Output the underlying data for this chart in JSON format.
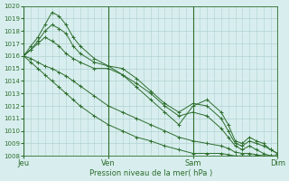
{
  "xlabel": "Pression niveau de la mer( hPa )",
  "background_color": "#d8eeee",
  "grid_color": "#b0d0d0",
  "line_color": "#2d6e2d",
  "ylim": [
    1008,
    1020
  ],
  "day_labels": [
    "Jeu",
    "Ven",
    "Sam",
    "Dim"
  ],
  "day_positions": [
    0,
    72,
    144,
    216
  ],
  "total_hours": 216,
  "series": [
    {
      "x": [
        0,
        6,
        12,
        18,
        24,
        30,
        36,
        42,
        48,
        60,
        72,
        84,
        96,
        108,
        120,
        132,
        144,
        156,
        168,
        174,
        180,
        186,
        192,
        198,
        204,
        210,
        216
      ],
      "y": [
        1016,
        1016.8,
        1017.5,
        1018.5,
        1019.5,
        1019.2,
        1018.5,
        1017.5,
        1016.8,
        1015.8,
        1015.2,
        1014.5,
        1013.5,
        1012.5,
        1011.5,
        1010.5,
        1012.0,
        1012.5,
        1011.5,
        1010.5,
        1009.2,
        1009.0,
        1009.5,
        1009.2,
        1009.0,
        1008.5,
        1008.2
      ]
    },
    {
      "x": [
        0,
        6,
        12,
        18,
        24,
        30,
        36,
        42,
        48,
        60,
        72,
        84,
        96,
        108,
        120,
        132,
        144,
        156,
        168,
        174,
        180,
        186,
        192,
        198,
        204,
        210,
        216
      ],
      "y": [
        1016.1,
        1016.5,
        1017.2,
        1018.0,
        1018.5,
        1018.2,
        1017.8,
        1016.8,
        1016.2,
        1015.5,
        1015.2,
        1015.0,
        1014.2,
        1013.2,
        1012.2,
        1011.5,
        1012.2,
        1012.0,
        1011.0,
        1010.0,
        1009.0,
        1008.8,
        1009.2,
        1009.0,
        1008.8,
        1008.5,
        1008.2
      ]
    },
    {
      "x": [
        0,
        6,
        12,
        18,
        24,
        30,
        36,
        42,
        48,
        60,
        72,
        84,
        96,
        108,
        120,
        132,
        144,
        156,
        168,
        174,
        180,
        186,
        192,
        198,
        204,
        210,
        216
      ],
      "y": [
        1016.0,
        1016.5,
        1017.0,
        1017.5,
        1017.2,
        1016.8,
        1016.2,
        1015.8,
        1015.5,
        1015.0,
        1015.0,
        1014.5,
        1013.8,
        1013.0,
        1012.0,
        1011.2,
        1011.5,
        1011.2,
        1010.2,
        1009.5,
        1008.8,
        1008.5,
        1008.8,
        1008.5,
        1008.2,
        1008.0,
        1008.0
      ]
    },
    {
      "x": [
        0,
        6,
        12,
        18,
        24,
        30,
        36,
        42,
        48,
        60,
        72,
        84,
        96,
        108,
        120,
        132,
        144,
        156,
        168,
        174,
        180,
        186,
        192,
        198,
        204,
        210,
        216
      ],
      "y": [
        1016.0,
        1015.8,
        1015.5,
        1015.2,
        1015.0,
        1014.7,
        1014.4,
        1014.0,
        1013.6,
        1012.8,
        1012.0,
        1011.5,
        1011.0,
        1010.5,
        1010.0,
        1009.5,
        1009.2,
        1009.0,
        1008.8,
        1008.6,
        1008.3,
        1008.2,
        1008.2,
        1008.1,
        1008.0,
        1008.0,
        1008.0
      ]
    },
    {
      "x": [
        0,
        6,
        12,
        18,
        24,
        30,
        36,
        42,
        48,
        60,
        72,
        84,
        96,
        108,
        120,
        132,
        144,
        156,
        168,
        174,
        180,
        186,
        192,
        198,
        204,
        210,
        216
      ],
      "y": [
        1016.0,
        1015.5,
        1015.0,
        1014.5,
        1014.0,
        1013.5,
        1013.0,
        1012.5,
        1012.0,
        1011.2,
        1010.5,
        1010.0,
        1009.5,
        1009.2,
        1008.8,
        1008.5,
        1008.2,
        1008.2,
        1008.2,
        1008.1,
        1008.0,
        1008.0,
        1008.0,
        1008.0,
        1008.0,
        1008.0,
        1008.0
      ]
    }
  ]
}
